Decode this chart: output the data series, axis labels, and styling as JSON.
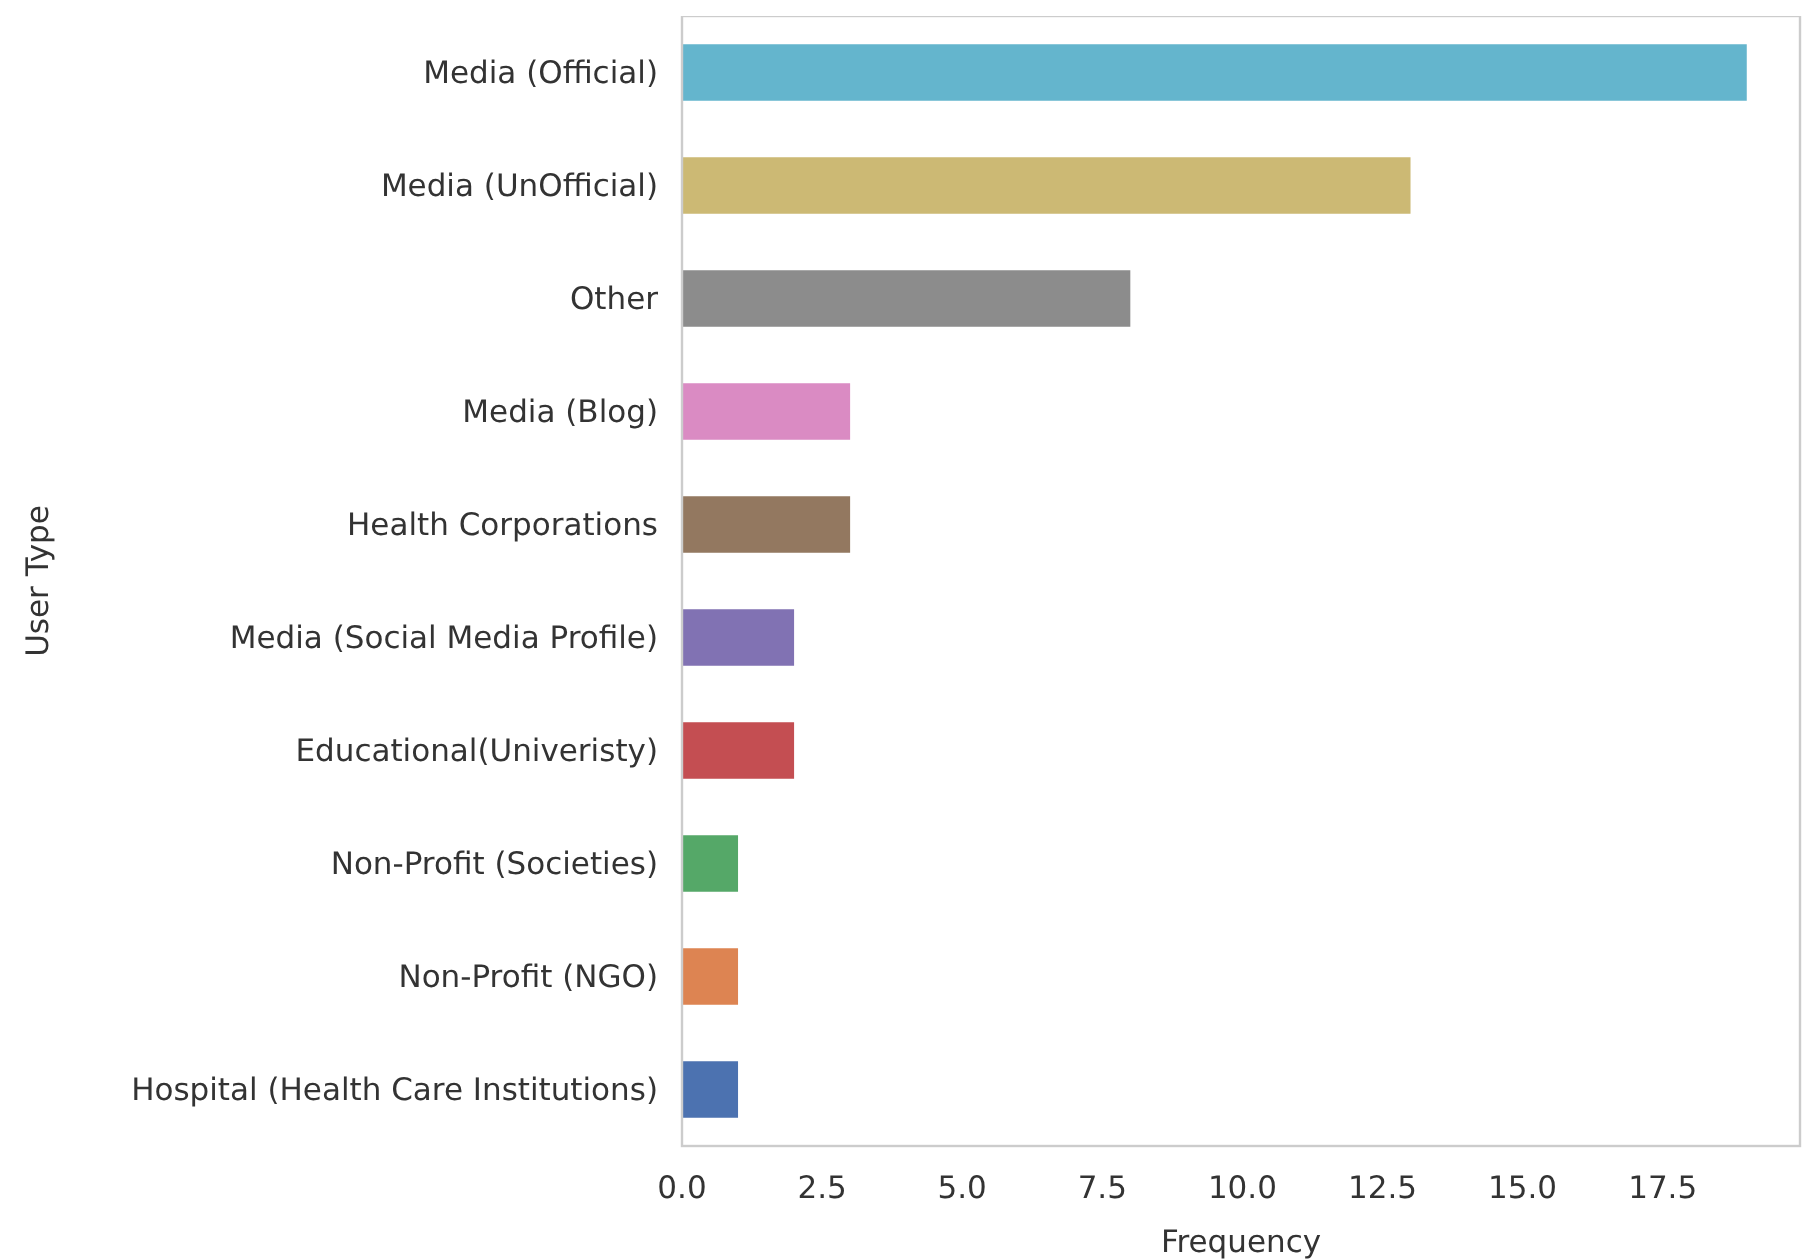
{
  "chart_data": {
    "type": "bar",
    "orientation": "horizontal",
    "xlabel": "Frequency",
    "ylabel": "User Type",
    "categories": [
      "Media (Official)",
      "Media (UnOfficial)",
      "Other",
      "Media (Blog)",
      "Health Corporations",
      "Media (Social Media Profile)",
      "Educational(Univeristy)",
      "Non-Profit (Societies)",
      "Non-Profit (NGO)",
      "Hospital (Health Care Institutions)"
    ],
    "values": [
      19,
      13,
      8,
      3,
      3,
      2,
      2,
      1,
      1,
      1
    ],
    "colors": [
      "#64b5cd",
      "#ccb974",
      "#8c8c8c",
      "#da8bc3",
      "#937860",
      "#8172b3",
      "#c44e52",
      "#55a868",
      "#dd8452",
      "#4c72b0"
    ],
    "xlim": [
      0,
      19.95
    ],
    "xticks": [
      {
        "value": 0,
        "label": "0.0"
      },
      {
        "value": 2.5,
        "label": "2.5"
      },
      {
        "value": 5,
        "label": "5.0"
      },
      {
        "value": 7.5,
        "label": "7.5"
      },
      {
        "value": 10,
        "label": "10.0"
      },
      {
        "value": 12.5,
        "label": "12.5"
      },
      {
        "value": 15,
        "label": "15.0"
      },
      {
        "value": 17.5,
        "label": "17.5"
      }
    ],
    "grid": false
  }
}
